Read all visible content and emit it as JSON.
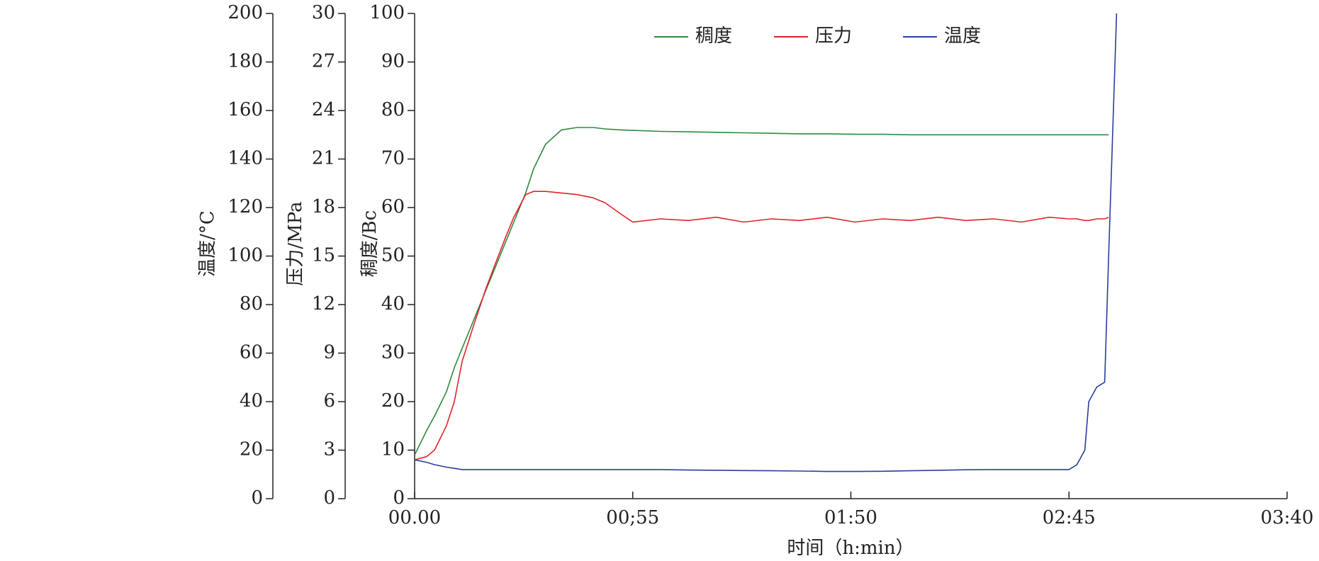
{
  "chart_data": {
    "type": "line",
    "x": [
      0,
      3,
      5,
      8,
      10,
      12,
      15,
      18,
      20,
      23,
      25,
      28,
      30,
      33,
      37,
      41,
      45,
      48,
      52,
      55,
      62,
      69,
      76,
      83,
      90,
      97,
      104,
      111,
      118,
      125,
      132,
      139,
      146,
      153,
      160,
      165,
      167,
      169,
      170,
      172,
      174,
      175,
      176,
      177
    ],
    "xlim": [
      0,
      220
    ],
    "xticks": [
      {
        "value": 0,
        "label": "00.00"
      },
      {
        "value": 55,
        "label": "00;55"
      },
      {
        "value": 110,
        "label": "01:50"
      },
      {
        "value": 165,
        "label": "02:45"
      },
      {
        "value": 220,
        "label": "03:40"
      }
    ],
    "xlabel": "时间（h:min）",
    "ylabel": "稠度/Bc",
    "ylim": [
      0,
      100
    ],
    "yticks": [
      0,
      10,
      20,
      30,
      40,
      50,
      60,
      70,
      80,
      90,
      100
    ],
    "y2label": "压力/MPa",
    "y2lim": [
      0,
      30
    ],
    "y2ticks": [
      0,
      3,
      6,
      9,
      12,
      15,
      18,
      21,
      24,
      27,
      30
    ],
    "y3label": "温度/°C",
    "y3lim": [
      0,
      200
    ],
    "y3ticks": [
      0,
      20,
      40,
      60,
      80,
      100,
      120,
      140,
      160,
      180,
      200
    ],
    "series": [
      {
        "name": "稠度",
        "color": "#2e8b3e",
        "axis": "y",
        "values": [
          9,
          14,
          17,
          22,
          27,
          31,
          37,
          43,
          47,
          53,
          57,
          63,
          68,
          73,
          76,
          76.5,
          76.5,
          76.2,
          76,
          75.9,
          75.7,
          75.6,
          75.5,
          75.4,
          75.3,
          75.2,
          75.2,
          75.1,
          75.1,
          75,
          75,
          75,
          75,
          75,
          75,
          75,
          75,
          75,
          75,
          75,
          75,
          75,
          null,
          null
        ]
      },
      {
        "name": "压力",
        "color": "#e0242a",
        "axis": "y2",
        "values": [
          2.4,
          2.6,
          3,
          4.5,
          6,
          8.5,
          10.8,
          13,
          14.3,
          16.2,
          17.4,
          18.8,
          19,
          19,
          18.9,
          18.8,
          18.6,
          18.3,
          17.6,
          17.1,
          17.3,
          17.2,
          17.4,
          17.1,
          17.3,
          17.2,
          17.4,
          17.1,
          17.3,
          17.2,
          17.4,
          17.2,
          17.3,
          17.1,
          17.4,
          17.3,
          17.3,
          17.2,
          17.2,
          17.3,
          17.3,
          17.4,
          null,
          null
        ]
      },
      {
        "name": "温度",
        "color": "#2a3f9a",
        "axis": "y3",
        "values": [
          16,
          15,
          14,
          13,
          12.5,
          12,
          12,
          12,
          12,
          12,
          12,
          12,
          12,
          12,
          12,
          12,
          12,
          12,
          12,
          12,
          12,
          11.8,
          11.7,
          11.6,
          11.5,
          11.4,
          11.2,
          11.2,
          11.3,
          11.5,
          11.7,
          11.9,
          12,
          12,
          12,
          12,
          14,
          20,
          40,
          46,
          48,
          100,
          150,
          200
        ]
      }
    ]
  }
}
